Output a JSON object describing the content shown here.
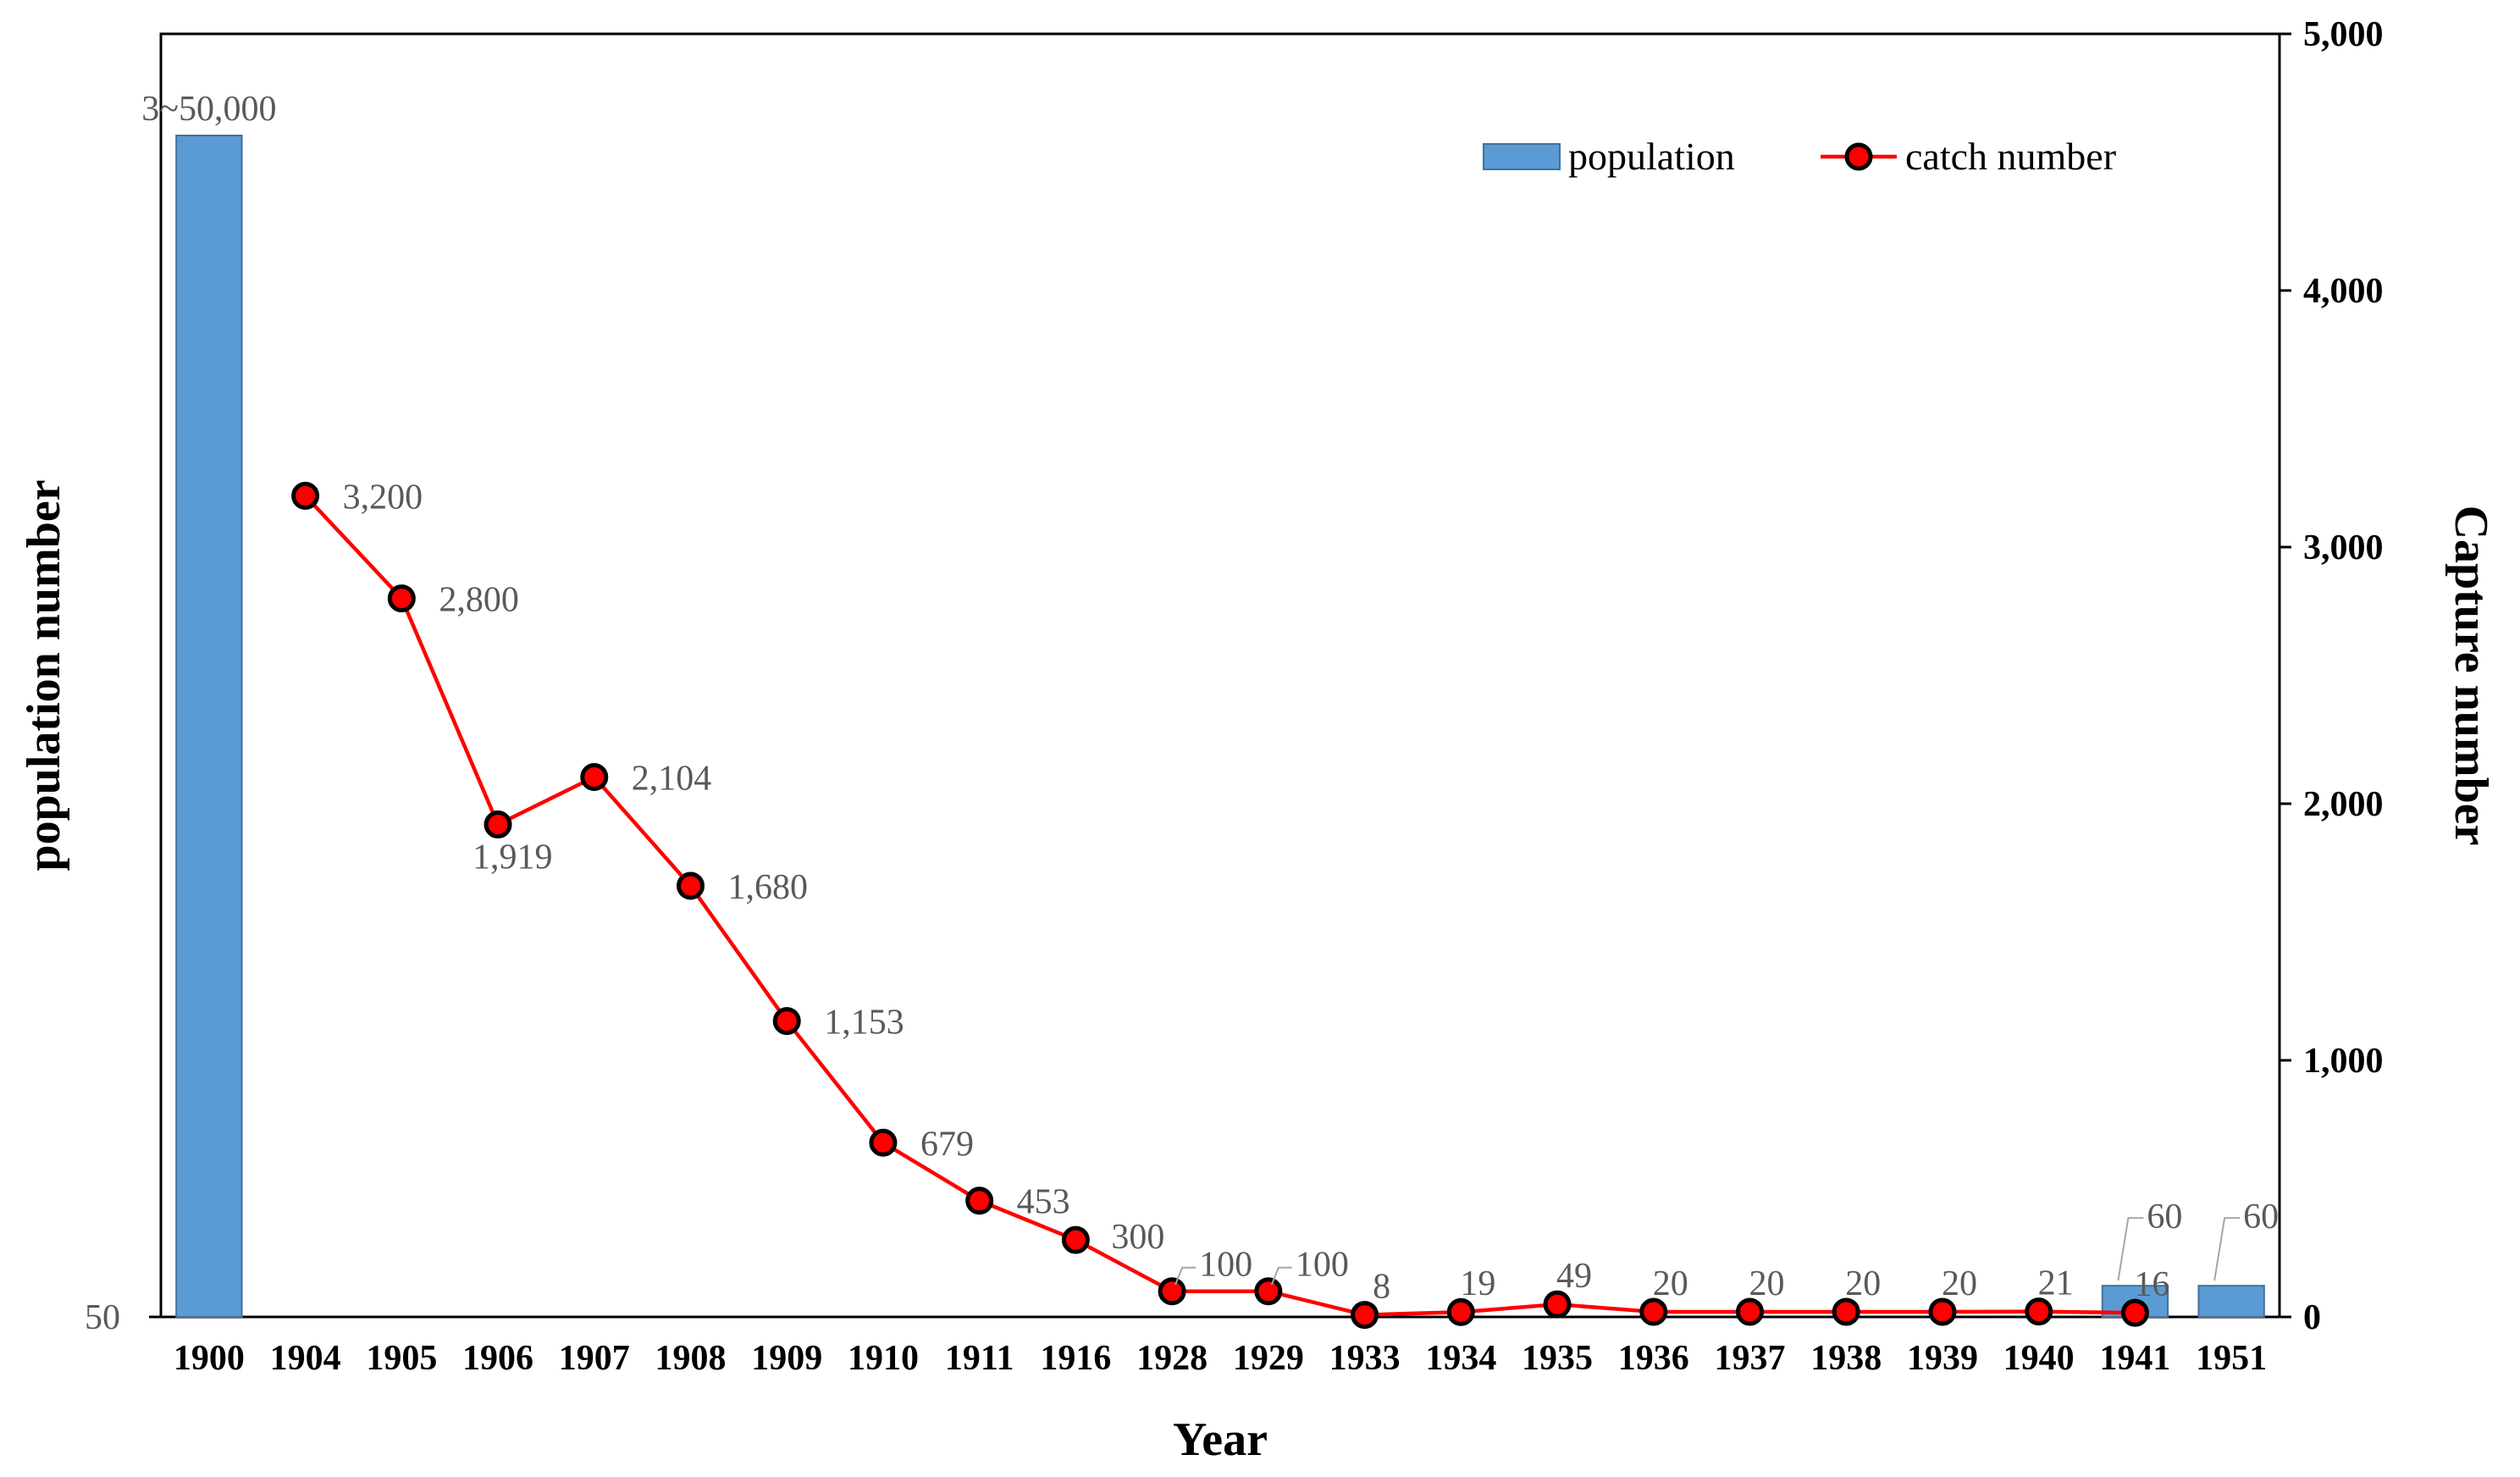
{
  "chart_data": {
    "type": "bar",
    "categories": [
      "1900",
      "1904",
      "1905",
      "1906",
      "1907",
      "1908",
      "1909",
      "1910",
      "1911",
      "1916",
      "1928",
      "1929",
      "1933",
      "1934",
      "1935",
      "1936",
      "1937",
      "1938",
      "1939",
      "1940",
      "1941",
      "1951"
    ],
    "series": [
      {
        "name": "population",
        "type": "bar",
        "axis": "left",
        "values": [
          null,
          null,
          null,
          null,
          null,
          null,
          null,
          null,
          null,
          null,
          null,
          null,
          null,
          null,
          null,
          null,
          null,
          null,
          null,
          null,
          60,
          60
        ],
        "labels": [
          "3~50,000",
          "",
          "",
          "",
          "",
          "",
          "",
          "",
          "",
          "",
          "",
          "",
          "",
          "",
          "",
          "",
          "",
          "",
          "",
          "",
          "60",
          "60"
        ]
      },
      {
        "name": "catch number",
        "type": "line",
        "axis": "right",
        "values": [
          null,
          3200,
          2800,
          1919,
          2104,
          1680,
          1153,
          679,
          453,
          300,
          100,
          100,
          8,
          19,
          49,
          20,
          20,
          20,
          20,
          21,
          16,
          null
        ],
        "labels": [
          "",
          "3,200",
          "2,800",
          "1,919",
          "2,104",
          "1,680",
          "1,153",
          "679",
          "453",
          "300",
          "100",
          "100",
          "8",
          "19",
          "49",
          "20",
          "20",
          "20",
          "20",
          "21",
          "16",
          ""
        ]
      }
    ],
    "xlabel": "Year",
    "ylabel_left": "population number",
    "ylabel_right": "Capture number",
    "y_left_ticks": [
      "50"
    ],
    "y_right_ticks": [
      "0",
      "1,000",
      "2,000",
      "3,000",
      "4,000",
      "5,000"
    ],
    "ylim_right": [
      0,
      5000
    ],
    "legend_position": "top-right",
    "grid": false,
    "colors": {
      "bar": "#5b9bd5",
      "bar_edge": "#41719c",
      "line": "#ff0000",
      "marker_fill": "#ff0000",
      "marker_edge": "#000000"
    }
  }
}
